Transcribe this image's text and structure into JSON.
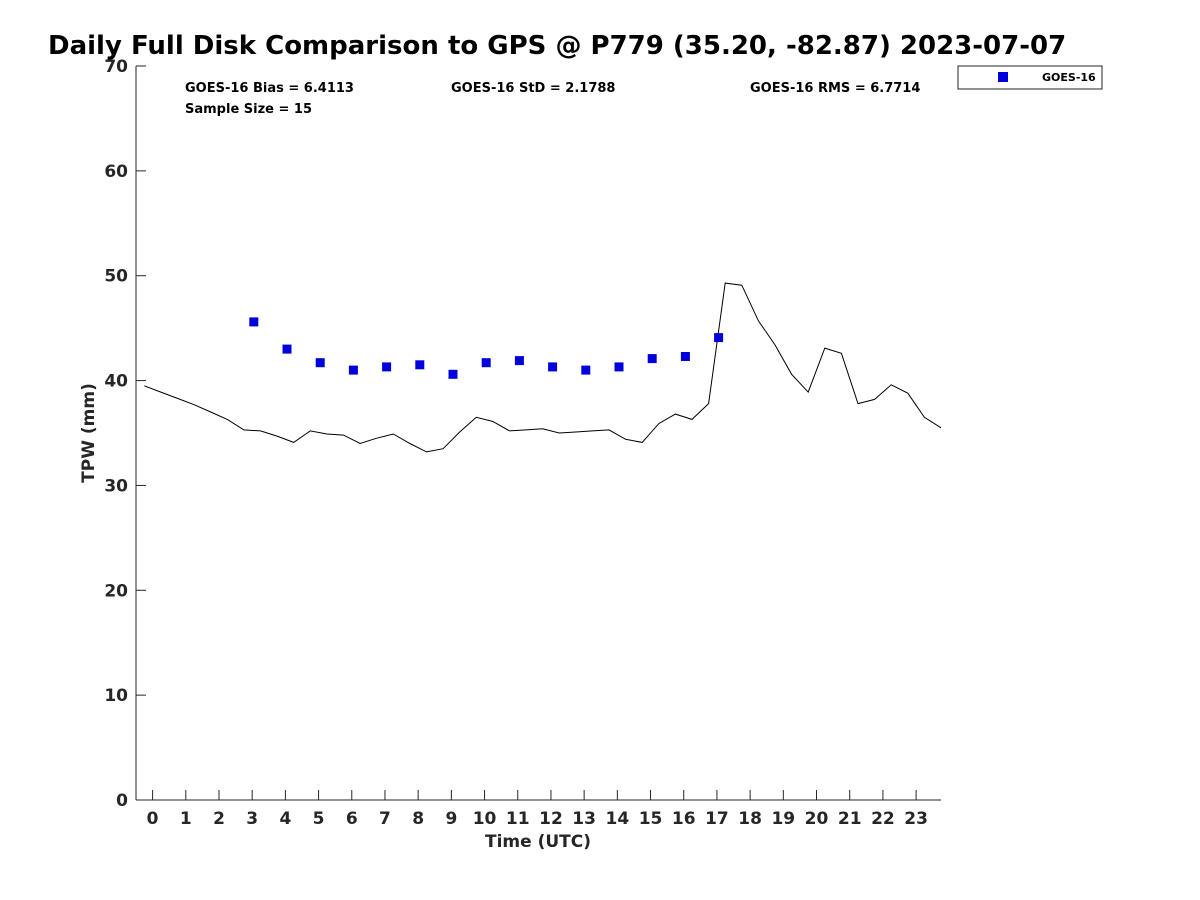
{
  "chart_data": {
    "type": "scatter",
    "title": "Daily Full Disk Comparison to GPS @ P779 (35.20, -82.87) 2023-07-07",
    "xlabel": "Time (UTC)",
    "ylabel": "TPW (mm)",
    "xlim": [
      -0.5,
      23.75
    ],
    "ylim": [
      0,
      70
    ],
    "x_ticks": [
      "0",
      "1",
      "2",
      "3",
      "4",
      "5",
      "6",
      "7",
      "8",
      "9",
      "10",
      "11",
      "12",
      "13",
      "14",
      "15",
      "16",
      "17",
      "18",
      "19",
      "20",
      "21",
      "22",
      "23"
    ],
    "y_ticks": [
      "0",
      "10",
      "20",
      "30",
      "40",
      "50",
      "60",
      "70"
    ],
    "grid": false,
    "legend_position": "top-right (outside plot)",
    "stats": {
      "bias": "GOES-16 Bias = 6.4113",
      "sample": "Sample Size = 15",
      "std": "GOES-16 StD = 2.1788",
      "rms": "GOES-16 RMS = 6.7714"
    },
    "series": [
      {
        "name": "GOES-16",
        "type": "scatter",
        "color": "#0000dd",
        "x": [
          3.05,
          4.05,
          5.05,
          6.05,
          7.05,
          8.05,
          9.05,
          10.05,
          11.05,
          12.05,
          13.05,
          14.05,
          15.05,
          16.05,
          17.05
        ],
        "y": [
          45.6,
          43.0,
          41.7,
          41.0,
          41.3,
          41.5,
          40.6,
          41.7,
          41.9,
          41.3,
          41.0,
          41.3,
          42.1,
          42.3,
          44.1
        ]
      },
      {
        "type": "line",
        "color": "#000000",
        "x": [
          -0.25,
          0.25,
          0.75,
          1.25,
          1.75,
          2.25,
          2.75,
          3.25,
          3.75,
          4.25,
          4.75,
          5.25,
          5.75,
          6.25,
          6.75,
          7.25,
          7.75,
          8.25,
          8.75,
          9.25,
          9.75,
          10.25,
          10.75,
          11.25,
          11.75,
          12.25,
          12.75,
          13.25,
          13.75,
          14.25,
          14.75,
          15.25,
          15.75,
          16.25,
          16.75,
          17.25,
          17.75,
          18.25,
          18.75,
          19.25,
          19.75,
          20.25,
          20.75,
          21.25,
          21.75,
          22.25,
          22.75,
          23.25,
          23.75
        ],
        "y": [
          39.5,
          38.9,
          38.3,
          37.7,
          37.0,
          36.3,
          35.3,
          35.2,
          34.7,
          34.1,
          35.2,
          34.9,
          34.8,
          34.0,
          34.5,
          34.9,
          34.0,
          33.2,
          33.5,
          35.1,
          36.5,
          36.1,
          35.2,
          35.3,
          35.4,
          35.0,
          35.1,
          35.2,
          35.3,
          34.4,
          34.1,
          35.9,
          36.8,
          36.3,
          37.8,
          49.3,
          49.1,
          45.7,
          43.4,
          40.6,
          38.9,
          43.1,
          42.6,
          37.8,
          38.2,
          39.6,
          38.8,
          36.5,
          35.5
        ]
      }
    ]
  }
}
